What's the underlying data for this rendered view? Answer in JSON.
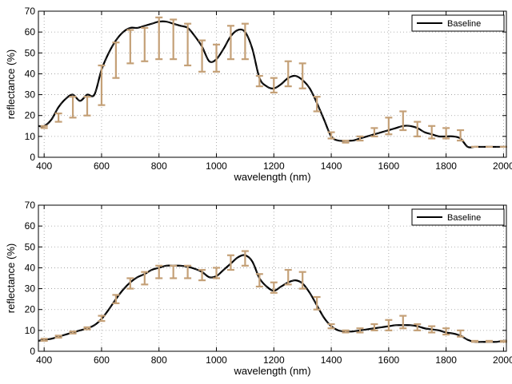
{
  "chart_data": [
    {
      "type": "line",
      "xlabel": "wavelength (nm)",
      "ylabel": "reflectance (%)",
      "xlim": [
        380,
        2010
      ],
      "ylim": [
        0,
        70
      ],
      "xticks": [
        400,
        600,
        800,
        1000,
        1200,
        1400,
        1600,
        1800,
        2000
      ],
      "yticks": [
        0,
        10,
        20,
        30,
        40,
        50,
        60,
        70
      ],
      "grid": true,
      "legend": {
        "position": "top-right",
        "entries": [
          "Baseline"
        ]
      },
      "colors": {
        "line": "#000000",
        "errorbar": "#c4a077"
      },
      "series": [
        {
          "name": "Baseline",
          "x": [
            380,
            400,
            425,
            450,
            475,
            500,
            525,
            550,
            575,
            600,
            625,
            650,
            675,
            700,
            725,
            750,
            775,
            800,
            825,
            850,
            875,
            900,
            925,
            950,
            975,
            1000,
            1025,
            1050,
            1075,
            1100,
            1125,
            1150,
            1175,
            1200,
            1225,
            1250,
            1275,
            1300,
            1325,
            1350,
            1375,
            1400,
            1425,
            1450,
            1475,
            1500,
            1525,
            1550,
            1575,
            1600,
            1625,
            1650,
            1675,
            1700,
            1725,
            1750,
            1775,
            1800,
            1825,
            1850,
            1875,
            1900,
            1925,
            1950,
            1975,
            2000,
            2010
          ],
          "y": [
            15,
            15,
            18,
            24,
            28,
            30,
            27,
            30,
            30,
            42,
            50,
            56,
            60,
            62,
            62,
            63,
            64,
            65,
            65,
            64,
            63,
            62,
            58,
            53,
            46,
            47,
            52,
            58,
            61,
            60,
            52,
            38,
            34,
            33,
            35,
            38,
            39,
            37,
            33,
            26,
            18,
            10,
            8,
            8,
            8,
            9,
            10,
            11,
            12,
            13,
            14,
            15,
            15,
            14,
            12,
            11,
            10,
            10,
            10,
            9,
            5,
            5,
            5,
            5,
            5,
            5,
            5
          ],
          "errorbars": [
            {
              "x": 400,
              "low": 14,
              "high": 15
            },
            {
              "x": 450,
              "low": 17,
              "high": 21
            },
            {
              "x": 500,
              "low": 19,
              "high": 29
            },
            {
              "x": 550,
              "low": 20,
              "high": 29
            },
            {
              "x": 600,
              "low": 25,
              "high": 44
            },
            {
              "x": 650,
              "low": 38,
              "high": 55
            },
            {
              "x": 700,
              "low": 45,
              "high": 61
            },
            {
              "x": 750,
              "low": 46,
              "high": 62
            },
            {
              "x": 800,
              "low": 47,
              "high": 67
            },
            {
              "x": 850,
              "low": 47,
              "high": 66
            },
            {
              "x": 900,
              "low": 44,
              "high": 64
            },
            {
              "x": 950,
              "low": 41,
              "high": 56
            },
            {
              "x": 1000,
              "low": 41,
              "high": 54
            },
            {
              "x": 1050,
              "low": 47,
              "high": 63
            },
            {
              "x": 1100,
              "low": 47,
              "high": 64
            },
            {
              "x": 1150,
              "low": 34,
              "high": 39
            },
            {
              "x": 1200,
              "low": 31,
              "high": 38
            },
            {
              "x": 1250,
              "low": 34,
              "high": 46
            },
            {
              "x": 1300,
              "low": 33,
              "high": 45
            },
            {
              "x": 1350,
              "low": 22,
              "high": 29
            },
            {
              "x": 1400,
              "low": 9,
              "high": 12
            },
            {
              "x": 1450,
              "low": 7,
              "high": 8
            },
            {
              "x": 1500,
              "low": 8,
              "high": 10
            },
            {
              "x": 1550,
              "low": 10,
              "high": 14
            },
            {
              "x": 1600,
              "low": 11,
              "high": 19
            },
            {
              "x": 1650,
              "low": 13,
              "high": 22
            },
            {
              "x": 1700,
              "low": 10,
              "high": 17
            },
            {
              "x": 1750,
              "low": 9,
              "high": 15
            },
            {
              "x": 1800,
              "low": 9,
              "high": 14
            },
            {
              "x": 1850,
              "low": 8,
              "high": 13
            },
            {
              "x": 1900,
              "low": 5,
              "high": 5
            },
            {
              "x": 1950,
              "low": 5,
              "high": 5
            },
            {
              "x": 2000,
              "low": 5,
              "high": 5
            }
          ]
        }
      ]
    },
    {
      "type": "line",
      "xlabel": "wavelength (nm)",
      "ylabel": "reflectance (%)",
      "xlim": [
        380,
        2010
      ],
      "ylim": [
        0,
        70
      ],
      "xticks": [
        400,
        600,
        800,
        1000,
        1200,
        1400,
        1600,
        1800,
        2000
      ],
      "yticks": [
        0,
        10,
        20,
        30,
        40,
        50,
        60,
        70
      ],
      "grid": true,
      "legend": {
        "position": "top-right",
        "entries": [
          "Baseline"
        ]
      },
      "colors": {
        "line": "#000000",
        "errorbar": "#c4a077"
      },
      "series": [
        {
          "name": "Baseline",
          "x": [
            380,
            400,
            425,
            450,
            475,
            500,
            525,
            550,
            575,
            600,
            625,
            650,
            675,
            700,
            725,
            750,
            775,
            800,
            825,
            850,
            875,
            900,
            925,
            950,
            975,
            1000,
            1025,
            1050,
            1075,
            1100,
            1125,
            1150,
            1175,
            1200,
            1225,
            1250,
            1275,
            1300,
            1325,
            1350,
            1375,
            1400,
            1425,
            1450,
            1475,
            1500,
            1525,
            1550,
            1575,
            1600,
            1625,
            1650,
            1675,
            1700,
            1725,
            1750,
            1775,
            1800,
            1825,
            1850,
            1875,
            1900,
            1925,
            1950,
            1975,
            2000,
            2010
          ],
          "y": [
            5,
            5.5,
            6,
            7,
            8,
            9,
            10,
            11,
            12.5,
            15.5,
            20,
            25,
            29.5,
            33,
            35.5,
            37,
            39,
            40,
            41,
            41,
            41,
            40.5,
            39.5,
            38,
            35.5,
            36,
            39,
            42,
            45,
            46,
            43,
            35,
            31,
            29,
            31,
            33,
            34,
            32.5,
            28,
            22,
            16,
            12,
            10,
            9.5,
            9.5,
            10,
            10.5,
            11,
            11.5,
            12,
            12.5,
            12.5,
            12.5,
            12,
            11,
            10.5,
            10,
            9,
            8.5,
            7.5,
            5.5,
            4.5,
            4.5,
            4.5,
            4.5,
            5,
            5
          ],
          "errorbars": [
            {
              "x": 400,
              "low": 5,
              "high": 6
            },
            {
              "x": 450,
              "low": 6.5,
              "high": 7.5
            },
            {
              "x": 500,
              "low": 8.5,
              "high": 9.5
            },
            {
              "x": 550,
              "low": 10.5,
              "high": 11.5
            },
            {
              "x": 600,
              "low": 14.5,
              "high": 17
            },
            {
              "x": 650,
              "low": 23,
              "high": 27
            },
            {
              "x": 700,
              "low": 30,
              "high": 35
            },
            {
              "x": 750,
              "low": 32,
              "high": 38
            },
            {
              "x": 800,
              "low": 35,
              "high": 41
            },
            {
              "x": 850,
              "low": 35,
              "high": 41
            },
            {
              "x": 900,
              "low": 35,
              "high": 41
            },
            {
              "x": 950,
              "low": 34,
              "high": 39
            },
            {
              "x": 1000,
              "low": 35,
              "high": 40
            },
            {
              "x": 1050,
              "low": 39,
              "high": 46
            },
            {
              "x": 1100,
              "low": 41,
              "high": 48
            },
            {
              "x": 1150,
              "low": 31,
              "high": 37
            },
            {
              "x": 1200,
              "low": 28,
              "high": 33
            },
            {
              "x": 1250,
              "low": 32,
              "high": 39
            },
            {
              "x": 1300,
              "low": 30,
              "high": 38
            },
            {
              "x": 1350,
              "low": 20,
              "high": 26
            },
            {
              "x": 1400,
              "low": 11,
              "high": 13
            },
            {
              "x": 1450,
              "low": 9,
              "high": 10
            },
            {
              "x": 1500,
              "low": 9,
              "high": 11
            },
            {
              "x": 1550,
              "low": 10,
              "high": 13
            },
            {
              "x": 1600,
              "low": 10,
              "high": 15
            },
            {
              "x": 1650,
              "low": 11,
              "high": 17
            },
            {
              "x": 1700,
              "low": 10,
              "high": 13
            },
            {
              "x": 1750,
              "low": 9,
              "high": 12
            },
            {
              "x": 1800,
              "low": 8,
              "high": 11
            },
            {
              "x": 1850,
              "low": 7,
              "high": 10
            },
            {
              "x": 1900,
              "low": 4.5,
              "high": 5
            },
            {
              "x": 1950,
              "low": 4.5,
              "high": 5
            },
            {
              "x": 2000,
              "low": 4.5,
              "high": 5
            }
          ]
        }
      ]
    }
  ]
}
